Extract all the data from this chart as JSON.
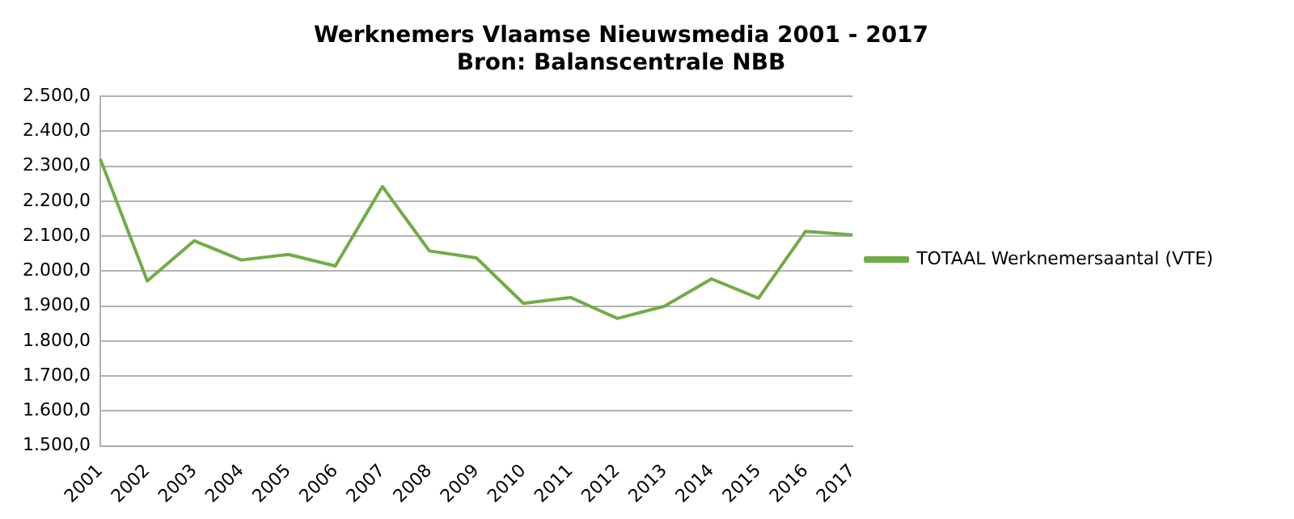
{
  "chart_data": {
    "type": "line",
    "title": "Werknemers Vlaamse Nieuwsmedia 2001 - 2017",
    "subtitle": "Bron: Balanscentrale NBB",
    "categories": [
      "2001",
      "2002",
      "2003",
      "2004",
      "2005",
      "2006",
      "2007",
      "2008",
      "2009",
      "2010",
      "2011",
      "2012",
      "2013",
      "2014",
      "2015",
      "2016",
      "2017"
    ],
    "series": [
      {
        "name": "TOTAAL Werknemersaantal (VTE)",
        "color": "#70ad47",
        "values": [
          2321,
          1972,
          2087,
          2032,
          2048,
          2015,
          2242,
          2058,
          2038,
          1908,
          1925,
          1865,
          1900,
          1978,
          1923,
          2114,
          2104
        ]
      }
    ],
    "ylim": [
      1500,
      2500
    ],
    "yticks": [
      {
        "value": 1500,
        "label": "1.500,0"
      },
      {
        "value": 1600,
        "label": "1.600,0"
      },
      {
        "value": 1700,
        "label": "1.700,0"
      },
      {
        "value": 1800,
        "label": "1.800,0"
      },
      {
        "value": 1900,
        "label": "1.900,0"
      },
      {
        "value": 2000,
        "label": "2.000,0"
      },
      {
        "value": 2100,
        "label": "2.100,0"
      },
      {
        "value": 2200,
        "label": "2.200,0"
      },
      {
        "value": 2300,
        "label": "2.300,0"
      },
      {
        "value": 2400,
        "label": "2.400,0"
      },
      {
        "value": 2500,
        "label": "2.500,0"
      }
    ],
    "grid": "y",
    "legend": "right",
    "marker": "none",
    "line_style": "solid"
  }
}
